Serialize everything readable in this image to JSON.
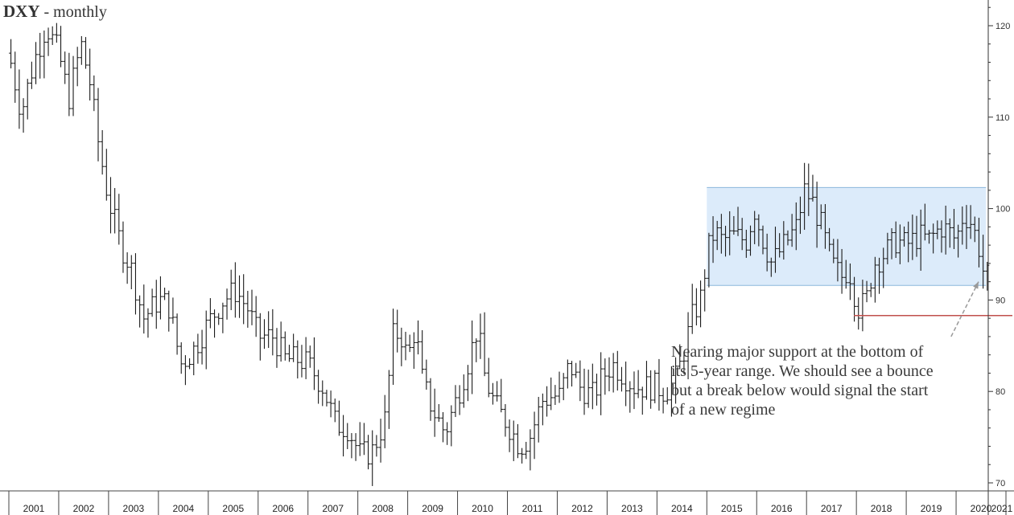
{
  "chart_data": {
    "type": "ohlc",
    "title": "DXY",
    "subtitle": "- monthly",
    "ylim": [
      70,
      122
    ],
    "xlim": [
      2001.0,
      2021.0
    ],
    "y_ticks": [
      70,
      80,
      90,
      100,
      110,
      120
    ],
    "x_tick_labels": [
      "2001",
      "2002",
      "2003",
      "2004",
      "2005",
      "2006",
      "2007",
      "2008",
      "2009",
      "2010",
      "2011",
      "2012",
      "2013",
      "2014",
      "2015",
      "2016",
      "2017",
      "2018",
      "2019",
      "2020",
      "2021"
    ],
    "range_box": {
      "x_start": 2015.0,
      "x_end": 2020.6,
      "y_low": 91.6,
      "y_high": 102.3,
      "fill": "#dcebfa",
      "stroke": "#8cb8dc"
    },
    "support_line": {
      "x_start": 2017.95,
      "y": 88.3,
      "color": "#c0504d"
    },
    "arrow": {
      "from": [
        2019.9,
        86.0
      ],
      "to": [
        2020.45,
        92.0
      ],
      "color": "#999999"
    },
    "annotation": "Nearing major support at the bottom of its 5-year range. We should see a bounce but a break below would signal the start of a new regime",
    "anchors": [
      [
        2001.0,
        117.0
      ],
      [
        2001.25,
        110.5
      ],
      [
        2001.5,
        116.0
      ],
      [
        2001.75,
        120.0
      ],
      [
        2002.0,
        117.0
      ],
      [
        2002.2,
        112.0
      ],
      [
        2002.45,
        118.0
      ],
      [
        2002.62,
        114.0
      ],
      [
        2002.8,
        107.0
      ],
      [
        2003.0,
        101.0
      ],
      [
        2003.25,
        96.0
      ],
      [
        2003.45,
        93.5
      ],
      [
        2003.7,
        88.0
      ],
      [
        2004.0,
        90.0
      ],
      [
        2004.2,
        89.5
      ],
      [
        2004.45,
        83.0
      ],
      [
        2004.7,
        84.5
      ],
      [
        2005.0,
        87.5
      ],
      [
        2005.3,
        90.0
      ],
      [
        2005.55,
        91.0
      ],
      [
        2005.8,
        89.0
      ],
      [
        2006.0,
        86.0
      ],
      [
        2006.3,
        86.0
      ],
      [
        2006.55,
        83.5
      ],
      [
        2006.8,
        83.5
      ],
      [
        2007.0,
        83.0
      ],
      [
        2007.3,
        80.5
      ],
      [
        2007.55,
        76.5
      ],
      [
        2007.8,
        76.0
      ],
      [
        2008.05,
        73.0
      ],
      [
        2008.3,
        73.5
      ],
      [
        2008.55,
        77.0
      ],
      [
        2008.7,
        86.0
      ],
      [
        2008.85,
        86.5
      ],
      [
        2009.0,
        83.5
      ],
      [
        2009.15,
        87.0
      ],
      [
        2009.3,
        81.0
      ],
      [
        2009.5,
        78.0
      ],
      [
        2009.75,
        75.5
      ],
      [
        2010.0,
        79.5
      ],
      [
        2010.2,
        83.0
      ],
      [
        2010.4,
        87.0
      ],
      [
        2010.55,
        81.5
      ],
      [
        2010.75,
        78.5
      ],
      [
        2011.0,
        76.5
      ],
      [
        2011.25,
        74.0
      ],
      [
        2011.45,
        75.0
      ],
      [
        2011.7,
        79.0
      ],
      [
        2011.9,
        79.5
      ],
      [
        2012.05,
        79.5
      ],
      [
        2012.25,
        83.0
      ],
      [
        2012.45,
        80.5
      ],
      [
        2012.7,
        79.5
      ],
      [
        2012.9,
        81.5
      ],
      [
        2013.1,
        83.0
      ],
      [
        2013.3,
        82.0
      ],
      [
        2013.55,
        80.5
      ],
      [
        2013.8,
        80.5
      ],
      [
        2014.0,
        80.5
      ],
      [
        2014.15,
        80.0
      ],
      [
        2014.35,
        81.0
      ],
      [
        2014.5,
        83.5
      ],
      [
        2014.7,
        88.0
      ],
      [
        2014.9,
        90.5
      ],
      [
        2015.0,
        95.0
      ],
      [
        2015.15,
        97.5
      ],
      [
        2015.3,
        96.5
      ],
      [
        2015.55,
        97.0
      ],
      [
        2015.8,
        96.5
      ],
      [
        2015.95,
        100.0
      ],
      [
        2016.1,
        97.0
      ],
      [
        2016.3,
        94.0
      ],
      [
        2016.55,
        96.0
      ],
      [
        2016.8,
        98.0
      ],
      [
        2016.95,
        102.0
      ],
      [
        2017.1,
        101.0
      ],
      [
        2017.3,
        98.0
      ],
      [
        2017.5,
        94.0
      ],
      [
        2017.7,
        92.5
      ],
      [
        2017.85,
        93.5
      ],
      [
        2017.97,
        90.5
      ],
      [
        2018.05,
        89.0
      ],
      [
        2018.2,
        90.0
      ],
      [
        2018.35,
        94.0
      ],
      [
        2018.55,
        95.0
      ],
      [
        2018.8,
        96.5
      ],
      [
        2019.0,
        96.0
      ],
      [
        2019.25,
        97.0
      ],
      [
        2019.45,
        96.5
      ],
      [
        2019.7,
        98.0
      ],
      [
        2019.85,
        97.5
      ],
      [
        2020.0,
        96.5
      ],
      [
        2020.15,
        99.5
      ],
      [
        2020.3,
        98.5
      ],
      [
        2020.45,
        96.0
      ],
      [
        2020.55,
        93.0
      ],
      [
        2020.62,
        92.5
      ]
    ]
  }
}
